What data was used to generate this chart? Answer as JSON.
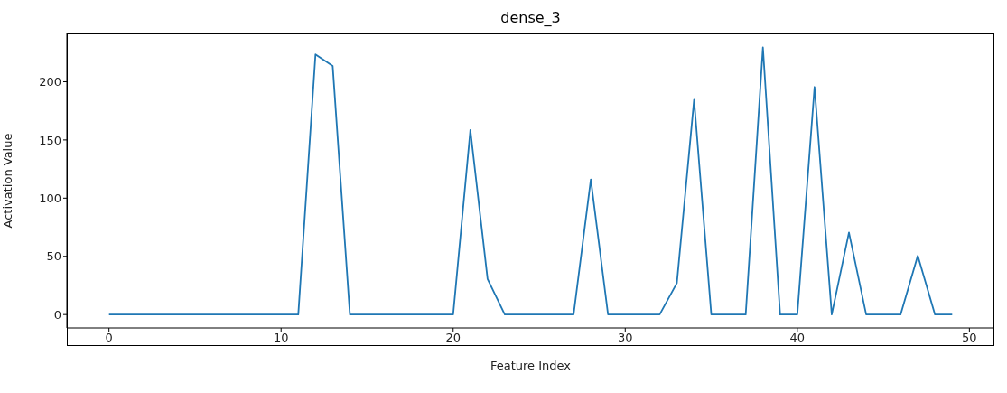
{
  "chart_data": {
    "type": "line",
    "title": "dense_3",
    "xlabel": "Feature Index",
    "ylabel": "Activation Value",
    "x": [
      0,
      1,
      2,
      3,
      4,
      5,
      6,
      7,
      8,
      9,
      10,
      11,
      12,
      13,
      14,
      15,
      16,
      17,
      18,
      19,
      20,
      21,
      22,
      23,
      24,
      25,
      26,
      27,
      28,
      29,
      30,
      31,
      32,
      33,
      34,
      35,
      36,
      37,
      38,
      39,
      40,
      41,
      42,
      43,
      44,
      45,
      46,
      47,
      48,
      49
    ],
    "series": [
      {
        "color": "#1f77b4",
        "values": [
          0,
          0,
          0,
          0,
          0,
          0,
          0,
          0,
          0,
          0,
          0,
          0,
          223.5,
          213.5,
          0,
          0,
          0,
          0,
          0,
          0,
          0,
          158.5,
          30.5,
          0,
          0,
          0,
          0,
          0,
          116,
          0,
          0,
          0,
          0,
          27,
          184.5,
          0,
          0,
          0,
          229.5,
          0,
          0,
          195.5,
          0,
          70.5,
          0,
          0,
          0,
          50.5,
          0,
          0
        ]
      }
    ],
    "xlim": [
      -2.45,
      51.45
    ],
    "xticks": [
      0,
      10,
      20,
      30,
      40,
      50
    ],
    "ylim": [
      -11.5,
      241.5
    ],
    "yticks": [
      0,
      50,
      100,
      150,
      200
    ],
    "grid": false,
    "legend": false,
    "marker": "none",
    "line_style": "solid"
  }
}
